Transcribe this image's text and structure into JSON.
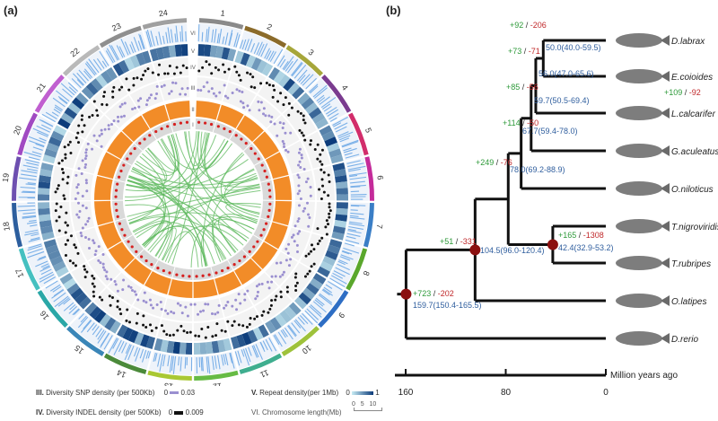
{
  "panel_a": {
    "label": "(a)",
    "chromosomes": [
      "1",
      "2",
      "3",
      "4",
      "5",
      "6",
      "7",
      "8",
      "9",
      "10",
      "11",
      "12",
      "13",
      "14",
      "15",
      "16",
      "17",
      "18",
      "19",
      "20",
      "21",
      "22",
      "23",
      "24"
    ],
    "chromosome_colors": [
      "#8a8a8a",
      "#8b6b2a",
      "#a6a63a",
      "#7a3b8f",
      "#d22d6b",
      "#c42b9a",
      "#3a7ec6",
      "#5aa72c",
      "#2e6ec4",
      "#9ec23b",
      "#3fae8f",
      "#66bb44",
      "#a9c833",
      "#4b8a3a",
      "#3a86b8",
      "#2aa7a7",
      "#45c0c0",
      "#2c5e9e",
      "#6d4fb0",
      "#a04ac2",
      "#c05fd0",
      "#b9b9b9",
      "#8f8f8f",
      "#a0a0a0"
    ],
    "ring_labels": [
      "I",
      "II",
      "III",
      "IV",
      "V",
      "VI"
    ],
    "colors": {
      "link": "#5cb85c",
      "orange": "#f28c28",
      "red_dot": "#d62020",
      "snp": "#9a8fd0",
      "indel": "#111111",
      "repeat_low": "#c8ecf4",
      "repeat_high": "#0b3b7a",
      "chromosome_ring": "#7ab0e8"
    },
    "legend": {
      "snp": {
        "num": "III.",
        "text": "Diversity SNP density (per 500Kb)",
        "min": "0",
        "max": "0.03"
      },
      "indel": {
        "num": "IV.",
        "text": "Diversity INDEL density (per 500Kb)",
        "min": "0",
        "max": "0.009"
      },
      "repeat": {
        "num": "V.",
        "text": "Repeat density(per 1Mb)",
        "min": "0",
        "max": "1"
      },
      "length": {
        "num": "VI.",
        "text": "Chromosome length(Mb)",
        "ticks": [
          "0",
          "5",
          "10"
        ]
      }
    }
  },
  "panel_b": {
    "label": "(b)",
    "species": [
      "D.labrax",
      "E.coioides",
      "L.calcarifer",
      "G.aculeatus",
      "O.niloticus",
      "T.nigroviridis",
      "T.rubripes",
      "O.latipes",
      "D.rerio"
    ],
    "nodes": [
      {
        "gain": "+92",
        "loss": "-206",
        "age": "50.0(40.0-59.5)"
      },
      {
        "gain": "+73",
        "loss": "-71",
        "age": "56.0(47.0-65.6)"
      },
      {
        "gain": "+85",
        "loss": "-56",
        "age": "59.7(50.5-69.4)"
      },
      {
        "gain": "+114",
        "loss": "-50",
        "age": "67.7(59.4-78.0)"
      },
      {
        "gain": "+249",
        "loss": "-76",
        "age": "78.0(69.2-88.9)"
      },
      {
        "gain": "+165",
        "loss": "-1308",
        "age": "42.4(32.9-53.2)"
      },
      {
        "gain": "+51",
        "loss": "-331",
        "age": "104.5(96.0-120.4)"
      },
      {
        "gain": "+723",
        "loss": "-202",
        "age": "159.7(150.4-165.5)"
      }
    ],
    "leaf_extra": {
      "gain": "+109",
      "loss": "-92"
    },
    "axis": {
      "ticks": [
        "160",
        "80",
        "0"
      ],
      "label": "Million years ago"
    },
    "colors": {
      "gain": "#2e9a3a",
      "loss": "#c0282a",
      "age": "#2f5e9e",
      "node": "#8b1010"
    }
  }
}
